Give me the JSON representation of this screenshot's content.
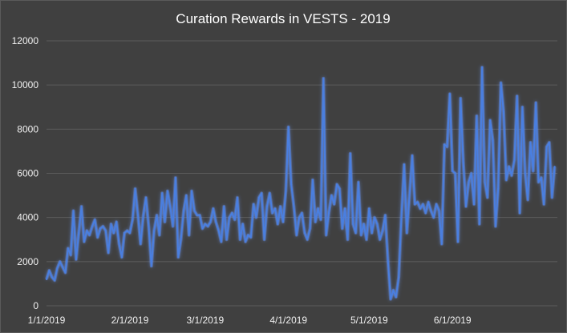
{
  "chart_data": {
    "type": "line",
    "title": "Curation Rewards in VESTS - 2019",
    "xlabel": "",
    "ylabel": "",
    "ylim": [
      0,
      12000
    ],
    "yticks": [
      "0",
      "2000",
      "4000",
      "6000",
      "8000",
      "10000",
      "12000"
    ],
    "xlim": [
      "2019-01-01",
      "2019-07-10"
    ],
    "xticks": [
      {
        "date": "2019-01-01",
        "label": "1/1/2019"
      },
      {
        "date": "2019-02-01",
        "label": "2/1/2019"
      },
      {
        "date": "2019-03-01",
        "label": "3/1/2019"
      },
      {
        "date": "2019-04-01",
        "label": "4/1/2019"
      },
      {
        "date": "2019-05-01",
        "label": "5/1/2019"
      },
      {
        "date": "2019-06-01",
        "label": "6/1/2019"
      }
    ],
    "grid": true,
    "legend": "none",
    "colors": {
      "line": "#4a7fe0",
      "glow": "#6d9bff",
      "background": "#404040",
      "grid": "#5c5c5c",
      "text": "#f0f0f0"
    },
    "series": [
      {
        "x": [
          "2019-01-01",
          "2019-01-02",
          "2019-01-03",
          "2019-01-04",
          "2019-01-05",
          "2019-01-06",
          "2019-01-07",
          "2019-01-08",
          "2019-01-09",
          "2019-01-10",
          "2019-01-11",
          "2019-01-12",
          "2019-01-13",
          "2019-01-14",
          "2019-01-15",
          "2019-01-16",
          "2019-01-17",
          "2019-01-18",
          "2019-01-19",
          "2019-01-20",
          "2019-01-21",
          "2019-01-22",
          "2019-01-23",
          "2019-01-24",
          "2019-01-25",
          "2019-01-26",
          "2019-01-27",
          "2019-01-28",
          "2019-01-29",
          "2019-01-30",
          "2019-01-31",
          "2019-02-01",
          "2019-02-02",
          "2019-02-03",
          "2019-02-04",
          "2019-02-05",
          "2019-02-06",
          "2019-02-07",
          "2019-02-08",
          "2019-02-09",
          "2019-02-10",
          "2019-02-11",
          "2019-02-12",
          "2019-02-13",
          "2019-02-14",
          "2019-02-15",
          "2019-02-16",
          "2019-02-17",
          "2019-02-18",
          "2019-02-19",
          "2019-02-20",
          "2019-02-21",
          "2019-02-22",
          "2019-02-23",
          "2019-02-24",
          "2019-02-25",
          "2019-02-26",
          "2019-02-27",
          "2019-02-28",
          "2019-03-01",
          "2019-03-02",
          "2019-03-03",
          "2019-03-04",
          "2019-03-05",
          "2019-03-06",
          "2019-03-07",
          "2019-03-08",
          "2019-03-09",
          "2019-03-10",
          "2019-03-11",
          "2019-03-12",
          "2019-03-13",
          "2019-03-14",
          "2019-03-15",
          "2019-03-16",
          "2019-03-17",
          "2019-03-18",
          "2019-03-19",
          "2019-03-20",
          "2019-03-21",
          "2019-03-22",
          "2019-03-23",
          "2019-03-24",
          "2019-03-25",
          "2019-03-26",
          "2019-03-27",
          "2019-03-28",
          "2019-03-29",
          "2019-03-30",
          "2019-03-31",
          "2019-04-01",
          "2019-04-02",
          "2019-04-03",
          "2019-04-04",
          "2019-04-05",
          "2019-04-06",
          "2019-04-07",
          "2019-04-08",
          "2019-04-09",
          "2019-04-10",
          "2019-04-11",
          "2019-04-12",
          "2019-04-13",
          "2019-04-14",
          "2019-04-15",
          "2019-04-16",
          "2019-04-17",
          "2019-04-18",
          "2019-04-19",
          "2019-04-20",
          "2019-04-21",
          "2019-04-22",
          "2019-04-23",
          "2019-04-24",
          "2019-04-25",
          "2019-04-26",
          "2019-04-27",
          "2019-04-28",
          "2019-04-29",
          "2019-04-30",
          "2019-05-01",
          "2019-05-02",
          "2019-05-03",
          "2019-05-04",
          "2019-05-05",
          "2019-05-06",
          "2019-05-07",
          "2019-05-08",
          "2019-05-09",
          "2019-05-10",
          "2019-05-11",
          "2019-05-12",
          "2019-05-13",
          "2019-05-14",
          "2019-05-15",
          "2019-05-16",
          "2019-05-17",
          "2019-05-18",
          "2019-05-19",
          "2019-05-20",
          "2019-05-21",
          "2019-05-22",
          "2019-05-23",
          "2019-05-24",
          "2019-05-25",
          "2019-05-26",
          "2019-05-27",
          "2019-05-28",
          "2019-05-29",
          "2019-05-30",
          "2019-05-31",
          "2019-06-01",
          "2019-06-02",
          "2019-06-03",
          "2019-06-04",
          "2019-06-05",
          "2019-06-06",
          "2019-06-07",
          "2019-06-08",
          "2019-06-09",
          "2019-06-10",
          "2019-06-11",
          "2019-06-12",
          "2019-06-13",
          "2019-06-14",
          "2019-06-15",
          "2019-06-16",
          "2019-06-17",
          "2019-06-18",
          "2019-06-19",
          "2019-06-20",
          "2019-06-21",
          "2019-06-22",
          "2019-06-23",
          "2019-06-24",
          "2019-06-25",
          "2019-06-26",
          "2019-06-27",
          "2019-06-28",
          "2019-06-29",
          "2019-06-30",
          "2019-07-01",
          "2019-07-02",
          "2019-07-03",
          "2019-07-04",
          "2019-07-05",
          "2019-07-06",
          "2019-07-07",
          "2019-07-08",
          "2019-07-09"
        ],
        "values": [
          1200,
          1600,
          1300,
          1150,
          1700,
          2000,
          1750,
          1500,
          2600,
          2300,
          4300,
          2100,
          3300,
          4500,
          2900,
          3400,
          3200,
          3600,
          3900,
          3100,
          3500,
          3600,
          3400,
          2400,
          3700,
          3300,
          3800,
          2800,
          2200,
          3300,
          3400,
          3300,
          3900,
          5300,
          4100,
          2800,
          4100,
          4900,
          3600,
          1800,
          3400,
          4100,
          3200,
          5100,
          3800,
          5200,
          4500,
          3600,
          5800,
          2200,
          3000,
          4300,
          5000,
          3200,
          5200,
          4300,
          4100,
          4100,
          3500,
          3700,
          3600,
          3800,
          4400,
          3800,
          3400,
          2900,
          4500,
          3000,
          4000,
          4200,
          3900,
          4900,
          3000,
          3700,
          2900,
          3200,
          3100,
          4600,
          4000,
          4900,
          5100,
          3000,
          4500,
          5100,
          4200,
          4400,
          3700,
          4500,
          3800,
          5200,
          8100,
          5500,
          4500,
          3200,
          4000,
          4200,
          3300,
          3000,
          3500,
          5700,
          3800,
          4400,
          3900,
          10300,
          3200,
          4200,
          5000,
          4600,
          5500,
          5300,
          3500,
          4400,
          3000,
          6900,
          3700,
          3300,
          5600,
          3200,
          3700,
          3000,
          4400,
          3300,
          4000,
          3700,
          3000,
          3400,
          4100,
          2000,
          300,
          700,
          400,
          1300,
          4000,
          6400,
          3300,
          5000,
          6800,
          4600,
          4700,
          4400,
          4600,
          4200,
          4700,
          4300,
          4000,
          4600,
          4300,
          2800,
          7300,
          7200,
          9600,
          6100,
          6000,
          2900,
          9400,
          6500,
          4500,
          5600,
          6000,
          4600,
          8600,
          3700,
          10800,
          5600,
          4900,
          8400,
          7500,
          3600,
          5300,
          10100,
          8800,
          5700,
          6300,
          5900,
          6600,
          9500,
          4200,
          9000,
          6000,
          4800,
          7400,
          6100,
          9200,
          5600,
          5800,
          4600,
          7200,
          7400,
          4900,
          6300
        ]
      }
    ]
  }
}
